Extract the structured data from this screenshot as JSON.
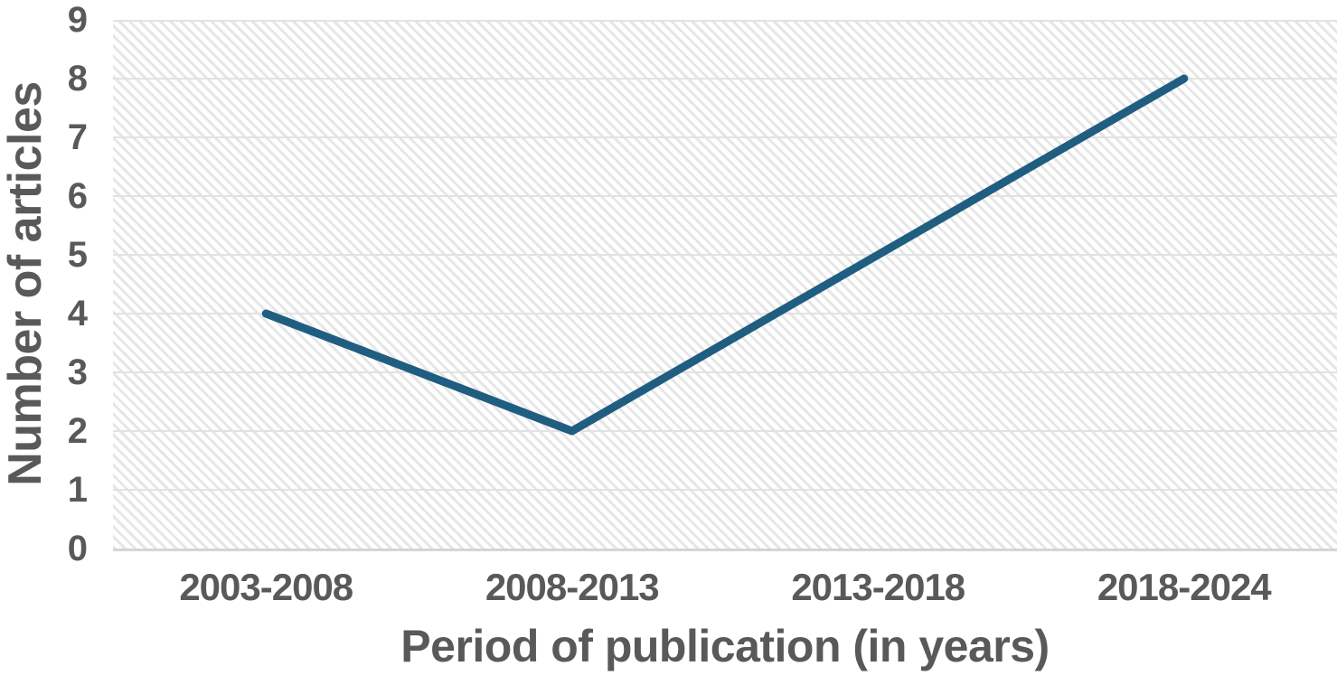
{
  "chart_data": {
    "type": "line",
    "title": "",
    "categories": [
      "2003-2008",
      "2008-2013",
      "2013-2018",
      "2018-2024"
    ],
    "series": [
      {
        "name": "Number of articles",
        "values": [
          4,
          2,
          5,
          8
        ]
      }
    ],
    "xlabel": "Period of publication (in years)",
    "ylabel": "Number of articles",
    "ylim": [
      0,
      9
    ],
    "yticks": [
      0,
      1,
      2,
      3,
      4,
      5,
      6,
      7,
      8,
      9
    ],
    "grid": "horizontal",
    "legend_position": "none",
    "plot_background": "diagonal-hatch",
    "colors": {
      "line": "#1F5E80",
      "axis_text": "#595959",
      "gridline": "#E2E2E2",
      "axis_line": "#D5D5D5",
      "plot_hatch": "#E6E6E6",
      "background": "#FFFFFF"
    }
  }
}
